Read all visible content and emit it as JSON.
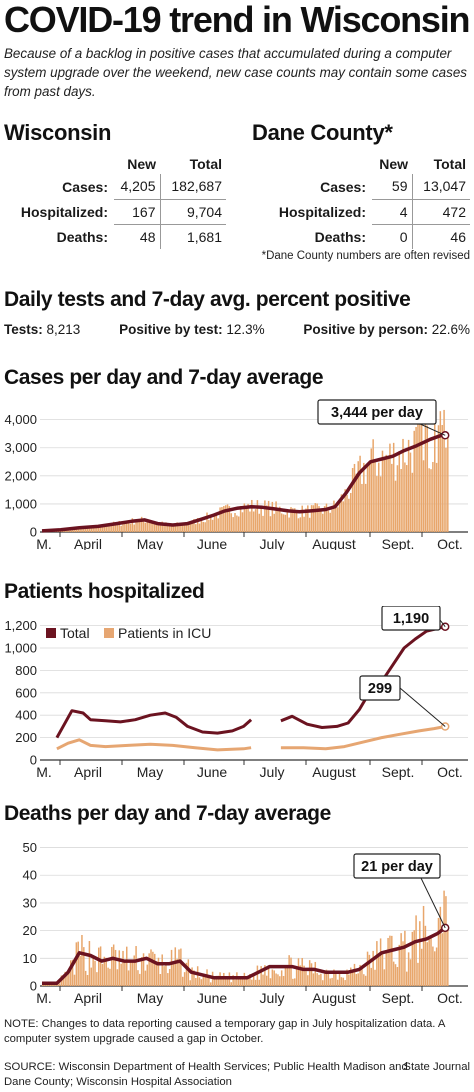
{
  "title": "COVID-19 trend in Wisconsin",
  "intro": "Because of a backlog in positive cases that accumulated during a computer system upgrade over the weekend, new case counts may contain some cases from past days.",
  "wisconsin": {
    "heading": "Wisconsin",
    "col_new": "New",
    "col_total": "Total",
    "rows": [
      {
        "label": "Cases:",
        "new": "4,205",
        "total": "182,687"
      },
      {
        "label": "Hospitalized:",
        "new": "167",
        "total": "9,704"
      },
      {
        "label": "Deaths:",
        "new": "48",
        "total": "1,681"
      }
    ]
  },
  "dane": {
    "heading": "Dane County*",
    "col_new": "New",
    "col_total": "Total",
    "rows": [
      {
        "label": "Cases:",
        "new": "59",
        "total": "13,047"
      },
      {
        "label": "Hospitalized:",
        "new": "4",
        "total": "472"
      },
      {
        "label": "Deaths:",
        "new": "0",
        "total": "46"
      }
    ],
    "note": "*Dane County numbers are often revised"
  },
  "tests": {
    "heading": "Daily tests and 7-day avg. percent positive",
    "tests_label": "Tests:",
    "tests_value": "8,213",
    "pbt_label": "Positive by test:",
    "pbt_value": "12.3%",
    "pbp_label": "Positive by person:",
    "pbp_value": "22.6%"
  },
  "colors": {
    "bar": "#e8a66b",
    "line": "#6b1320",
    "icu": "#e6a672",
    "axis": "#333333",
    "grid": "#d9d9d9"
  },
  "chart_data": [
    {
      "type": "bar",
      "title": "Cases per day and 7-day average",
      "x_labels": [
        "M.",
        "April",
        "May",
        "June",
        "July",
        "August",
        "Sept.",
        "Oct."
      ],
      "y_ticks": [
        "0",
        "1,000",
        "2,000",
        "3,000",
        "4,000"
      ],
      "ylim": [
        0,
        4700
      ],
      "bar_series": "Cases per day",
      "line_series": "7-day average",
      "days": 225,
      "avg_points": [
        [
          0,
          40
        ],
        [
          10,
          80
        ],
        [
          20,
          150
        ],
        [
          30,
          200
        ],
        [
          40,
          300
        ],
        [
          48,
          380
        ],
        [
          55,
          430
        ],
        [
          62,
          300
        ],
        [
          70,
          250
        ],
        [
          78,
          300
        ],
        [
          85,
          450
        ],
        [
          92,
          600
        ],
        [
          98,
          750
        ],
        [
          105,
          850
        ],
        [
          112,
          900
        ],
        [
          118,
          880
        ],
        [
          125,
          820
        ],
        [
          132,
          750
        ],
        [
          138,
          720
        ],
        [
          145,
          760
        ],
        [
          152,
          800
        ],
        [
          157,
          900
        ],
        [
          163,
          1400
        ],
        [
          170,
          2100
        ],
        [
          176,
          2500
        ],
        [
          182,
          2600
        ],
        [
          188,
          2700
        ],
        [
          194,
          2900
        ],
        [
          200,
          3050
        ],
        [
          208,
          3300
        ],
        [
          214,
          3444
        ],
        [
          216,
          3444
        ]
      ],
      "annotation": "3,444 per day",
      "annotation_point": [
        216,
        3444
      ]
    },
    {
      "type": "line",
      "title": "Patients hospitalized",
      "x_labels": [
        "M.",
        "April",
        "May",
        "June",
        "July",
        "August",
        "Sept.",
        "Oct."
      ],
      "y_ticks": [
        "0",
        "200",
        "400",
        "600",
        "800",
        "1,000",
        "1,200"
      ],
      "ylim": [
        0,
        1250
      ],
      "legend": [
        "Total",
        "Patients in ICU"
      ],
      "days": 225,
      "gap": [
        112,
        128
      ],
      "series": [
        {
          "name": "Total",
          "points": [
            [
              8,
              200
            ],
            [
              12,
              320
            ],
            [
              16,
              440
            ],
            [
              22,
              420
            ],
            [
              26,
              360
            ],
            [
              34,
              350
            ],
            [
              42,
              340
            ],
            [
              50,
              360
            ],
            [
              58,
              400
            ],
            [
              66,
              420
            ],
            [
              72,
              380
            ],
            [
              78,
              300
            ],
            [
              86,
              250
            ],
            [
              94,
              240
            ],
            [
              102,
              260
            ],
            [
              108,
              300
            ],
            [
              112,
              360
            ],
            [
              128,
              350
            ],
            [
              134,
              390
            ],
            [
              142,
              320
            ],
            [
              150,
              290
            ],
            [
              158,
              300
            ],
            [
              164,
              330
            ],
            [
              170,
              450
            ],
            [
              176,
              620
            ],
            [
              182,
              700
            ],
            [
              188,
              850
            ],
            [
              194,
              1000
            ],
            [
              200,
              1080
            ],
            [
              206,
              1150
            ],
            [
              216,
              1190
            ]
          ]
        },
        {
          "name": "Patients in ICU",
          "points": [
            [
              8,
              100
            ],
            [
              14,
              150
            ],
            [
              20,
              180
            ],
            [
              26,
              130
            ],
            [
              34,
              120
            ],
            [
              46,
              130
            ],
            [
              58,
              140
            ],
            [
              70,
              130
            ],
            [
              82,
              110
            ],
            [
              94,
              90
            ],
            [
              108,
              100
            ],
            [
              112,
              110
            ],
            [
              128,
              110
            ],
            [
              140,
              110
            ],
            [
              152,
              100
            ],
            [
              162,
              120
            ],
            [
              172,
              160
            ],
            [
              182,
              200
            ],
            [
              192,
              230
            ],
            [
              202,
              260
            ],
            [
              210,
              280
            ],
            [
              216,
              299
            ]
          ]
        }
      ],
      "annotations": [
        {
          "text": "1,190",
          "point": [
            216,
            1190
          ]
        },
        {
          "text": "299",
          "point": [
            216,
            299
          ]
        }
      ]
    },
    {
      "type": "bar",
      "title": "Deaths per day and 7-day average",
      "x_labels": [
        "M.",
        "April",
        "May",
        "June",
        "July",
        "August",
        "Sept.",
        "Oct."
      ],
      "y_ticks": [
        "0",
        "10",
        "20",
        "30",
        "40",
        "50"
      ],
      "ylim": [
        0,
        52
      ],
      "bar_series": "Deaths per day",
      "line_series": "7-day average",
      "days": 225,
      "avg_points": [
        [
          0,
          1
        ],
        [
          8,
          1
        ],
        [
          14,
          5
        ],
        [
          20,
          12
        ],
        [
          26,
          11
        ],
        [
          32,
          9
        ],
        [
          38,
          10
        ],
        [
          44,
          9
        ],
        [
          50,
          9
        ],
        [
          56,
          10
        ],
        [
          62,
          8
        ],
        [
          68,
          8
        ],
        [
          74,
          9
        ],
        [
          80,
          5
        ],
        [
          86,
          4
        ],
        [
          92,
          3
        ],
        [
          98,
          3
        ],
        [
          104,
          3
        ],
        [
          110,
          3
        ],
        [
          116,
          5
        ],
        [
          122,
          7
        ],
        [
          128,
          7
        ],
        [
          134,
          7
        ],
        [
          140,
          6
        ],
        [
          146,
          6
        ],
        [
          152,
          5
        ],
        [
          158,
          5
        ],
        [
          164,
          5
        ],
        [
          170,
          6
        ],
        [
          176,
          9
        ],
        [
          182,
          12
        ],
        [
          188,
          13
        ],
        [
          194,
          14
        ],
        [
          200,
          16
        ],
        [
          206,
          17
        ],
        [
          212,
          19
        ],
        [
          216,
          21
        ]
      ],
      "annotation": "21 per day",
      "annotation_point": [
        216,
        21
      ]
    }
  ],
  "note": "NOTE: Changes to data reporting caused a temporary gap in July hospitalization data. A computer system upgrade caused a gap in October.",
  "source": "SOURCE: Wisconsin Department of Health Services; Public Health Madison and Dane County; Wisconsin Hospital Association",
  "credit": "State Journal"
}
